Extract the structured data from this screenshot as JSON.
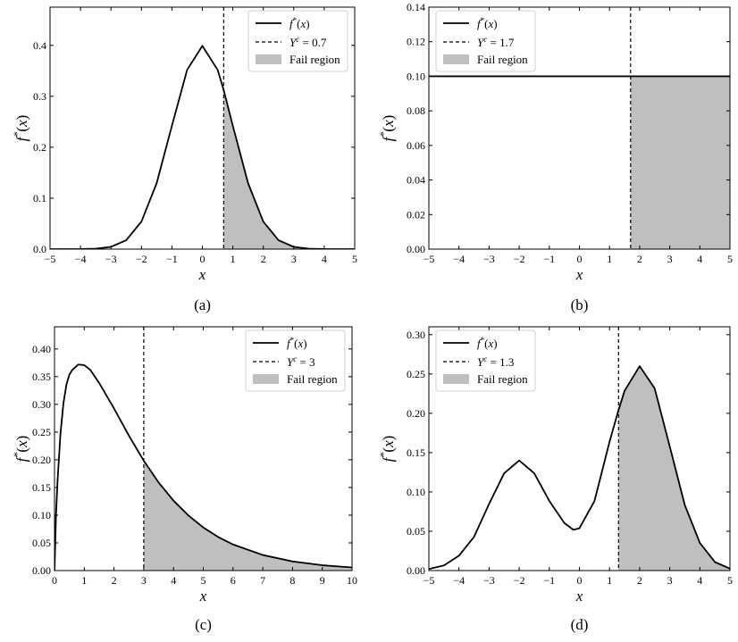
{
  "chart_data": [
    {
      "type": "area",
      "caption": "(a)",
      "xlabel": "x",
      "ylabel": "f*(x)",
      "xlim": [
        -5,
        5
      ],
      "ylim": [
        0,
        0.475
      ],
      "x_ticks": [
        -5,
        -4,
        -3,
        -2,
        -1,
        0,
        1,
        2,
        3,
        4,
        5
      ],
      "x_tick_labels": [
        "−5",
        "−4",
        "−3",
        "−2",
        "−1",
        "0",
        "1",
        "2",
        "3",
        "4",
        "5"
      ],
      "y_ticks": [
        0,
        0.1,
        0.2,
        0.3,
        0.4
      ],
      "y_tick_labels": [
        "0.0",
        "0.1",
        "0.2",
        "0.3",
        "0.4"
      ],
      "threshold": 0.7,
      "fill_side": "right",
      "legend": {
        "position": "top-right",
        "curve": "f*(x)",
        "threshold": "Yᶜ = 0.7",
        "fill": "Fail region"
      },
      "series": [
        {
          "x": [
            -5,
            -4.5,
            -4,
            -3.5,
            -3,
            -2.5,
            -2,
            -1.5,
            -1,
            -0.5,
            0,
            0.5,
            0.7,
            1,
            1.5,
            2,
            2.5,
            3,
            3.5,
            4,
            4.5,
            5
          ],
          "y": [
            0.0,
            0.0,
            0.0001,
            0.0009,
            0.0044,
            0.0175,
            0.054,
            0.1295,
            0.242,
            0.352,
            0.399,
            0.352,
            0.3123,
            0.242,
            0.1295,
            0.054,
            0.0175,
            0.0044,
            0.0009,
            0.0001,
            0.0,
            0.0
          ]
        }
      ]
    },
    {
      "type": "area",
      "caption": "(b)",
      "xlabel": "x",
      "ylabel": "f*(x)",
      "xlim": [
        -5,
        5
      ],
      "ylim": [
        0,
        0.14
      ],
      "x_ticks": [
        -5,
        -4,
        -3,
        -2,
        -1,
        0,
        1,
        2,
        3,
        4,
        5
      ],
      "x_tick_labels": [
        "−5",
        "−4",
        "−3",
        "−2",
        "−1",
        "0",
        "1",
        "2",
        "3",
        "4",
        "5"
      ],
      "y_ticks": [
        0,
        0.02,
        0.04,
        0.06,
        0.08,
        0.1,
        0.12,
        0.14
      ],
      "y_tick_labels": [
        "0.00",
        "0.02",
        "0.04",
        "0.06",
        "0.08",
        "0.10",
        "0.12",
        "0.14"
      ],
      "threshold": 1.7,
      "fill_side": "right",
      "legend": {
        "position": "top-left",
        "curve": "f*(x)",
        "threshold": "Yᶜ = 1.7",
        "fill": "Fail region"
      },
      "series": [
        {
          "x": [
            -5,
            1.7,
            5
          ],
          "y": [
            0.1,
            0.1,
            0.1
          ]
        }
      ]
    },
    {
      "type": "area",
      "caption": "(c)",
      "xlabel": "x",
      "ylabel": "f*(x)",
      "xlim": [
        0,
        10
      ],
      "ylim": [
        0,
        0.44
      ],
      "x_ticks": [
        0,
        1,
        2,
        3,
        4,
        5,
        6,
        7,
        8,
        9,
        10
      ],
      "x_tick_labels": [
        "0",
        "1",
        "2",
        "3",
        "4",
        "5",
        "6",
        "7",
        "8",
        "9",
        "10"
      ],
      "y_ticks": [
        0,
        0.05,
        0.1,
        0.15,
        0.2,
        0.25,
        0.3,
        0.35,
        0.4
      ],
      "y_tick_labels": [
        "0.00",
        "0.05",
        "0.10",
        "0.15",
        "0.20",
        "0.25",
        "0.30",
        "0.35",
        "0.40"
      ],
      "threshold": 3,
      "fill_side": "right",
      "legend": {
        "position": "top-right",
        "curve": "f*(x)",
        "threshold": "Yᶜ = 3",
        "fill": "Fail region"
      },
      "series": [
        {
          "x": [
            0,
            0.05,
            0.1,
            0.2,
            0.3,
            0.4,
            0.5,
            0.6,
            0.8,
            1,
            1.2,
            1.5,
            2,
            2.5,
            3,
            3.5,
            4,
            4.5,
            5,
            5.5,
            6,
            7,
            8,
            9,
            10
          ],
          "y": [
            0.0,
            0.1,
            0.1593,
            0.2468,
            0.3019,
            0.3353,
            0.3538,
            0.3623,
            0.3719,
            0.3708,
            0.3624,
            0.3387,
            0.2926,
            0.2436,
            0.1983,
            0.1589,
            0.1262,
            0.0995,
            0.0778,
            0.0606,
            0.0471,
            0.0281,
            0.0165,
            0.0096,
            0.0056
          ]
        }
      ]
    },
    {
      "type": "area",
      "caption": "(d)",
      "xlabel": "x",
      "ylabel": "f*(x)",
      "xlim": [
        -5,
        5
      ],
      "ylim": [
        0,
        0.31
      ],
      "x_ticks": [
        -5,
        -4,
        -3,
        -2,
        -1,
        0,
        1,
        2,
        3,
        4,
        5
      ],
      "x_tick_labels": [
        "−5",
        "−4",
        "−3",
        "−2",
        "−1",
        "0",
        "1",
        "2",
        "3",
        "4",
        "5"
      ],
      "y_ticks": [
        0,
        0.05,
        0.1,
        0.15,
        0.2,
        0.25,
        0.3
      ],
      "y_tick_labels": [
        "0.00",
        "0.05",
        "0.10",
        "0.15",
        "0.20",
        "0.25",
        "0.30"
      ],
      "threshold": 1.3,
      "fill_side": "right",
      "legend": {
        "position": "top-left",
        "curve": "f*(x)",
        "threshold": "Yᶜ = 1.3",
        "fill": "Fail region"
      },
      "series": [
        {
          "x": [
            -5,
            -4.5,
            -4,
            -3.5,
            -3,
            -2.5,
            -2,
            -1.5,
            -1,
            -0.5,
            -0.2,
            0,
            0.5,
            1,
            1.3,
            1.5,
            2,
            2.5,
            3,
            3.5,
            4,
            4.5,
            5
          ],
          "y": [
            0.002,
            0.0065,
            0.0189,
            0.0428,
            0.0847,
            0.1237,
            0.14,
            0.1237,
            0.0886,
            0.0605,
            0.0518,
            0.0538,
            0.0884,
            0.1637,
            0.2042,
            0.2286,
            0.26,
            0.2316,
            0.1579,
            0.0833,
            0.0352,
            0.0108,
            0.0025
          ]
        }
      ]
    }
  ]
}
